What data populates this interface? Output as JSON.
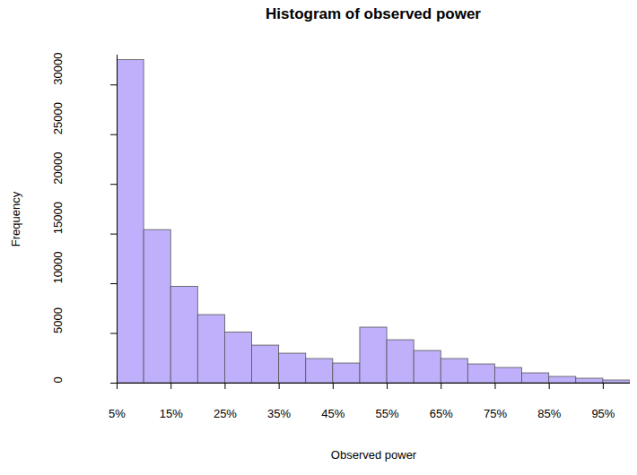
{
  "chart_data": {
    "type": "histogram",
    "title": "Histogram of observed power",
    "x_label": "Observed power",
    "y_label": "Frequency",
    "bins": [
      5,
      10,
      15,
      20,
      25,
      30,
      35,
      40,
      45,
      50,
      55,
      60,
      65,
      70,
      75,
      80,
      85,
      90,
      95,
      100
    ],
    "values": [
      32500,
      15400,
      9700,
      6850,
      5100,
      3780,
      2970,
      2430,
      1980,
      5590,
      4320,
      3240,
      2430,
      1890,
      1530,
      990,
      630,
      450,
      270
    ],
    "color": "#c0b0fc",
    "xlim": [
      5,
      100
    ],
    "ylim": [
      0,
      33000
    ],
    "xticks": [
      {
        "value": 5,
        "label": "5%"
      },
      {
        "value": 15,
        "label": "15%"
      },
      {
        "value": 25,
        "label": "25%"
      },
      {
        "value": 35,
        "label": "35%"
      },
      {
        "value": 45,
        "label": "45%"
      },
      {
        "value": 55,
        "label": "55%"
      },
      {
        "value": 65,
        "label": "65%"
      },
      {
        "value": 75,
        "label": "75%"
      },
      {
        "value": 85,
        "label": "85%"
      },
      {
        "value": 95,
        "label": "95%"
      }
    ],
    "yticks": [
      0,
      5000,
      10000,
      15000,
      20000,
      25000,
      30000
    ]
  }
}
